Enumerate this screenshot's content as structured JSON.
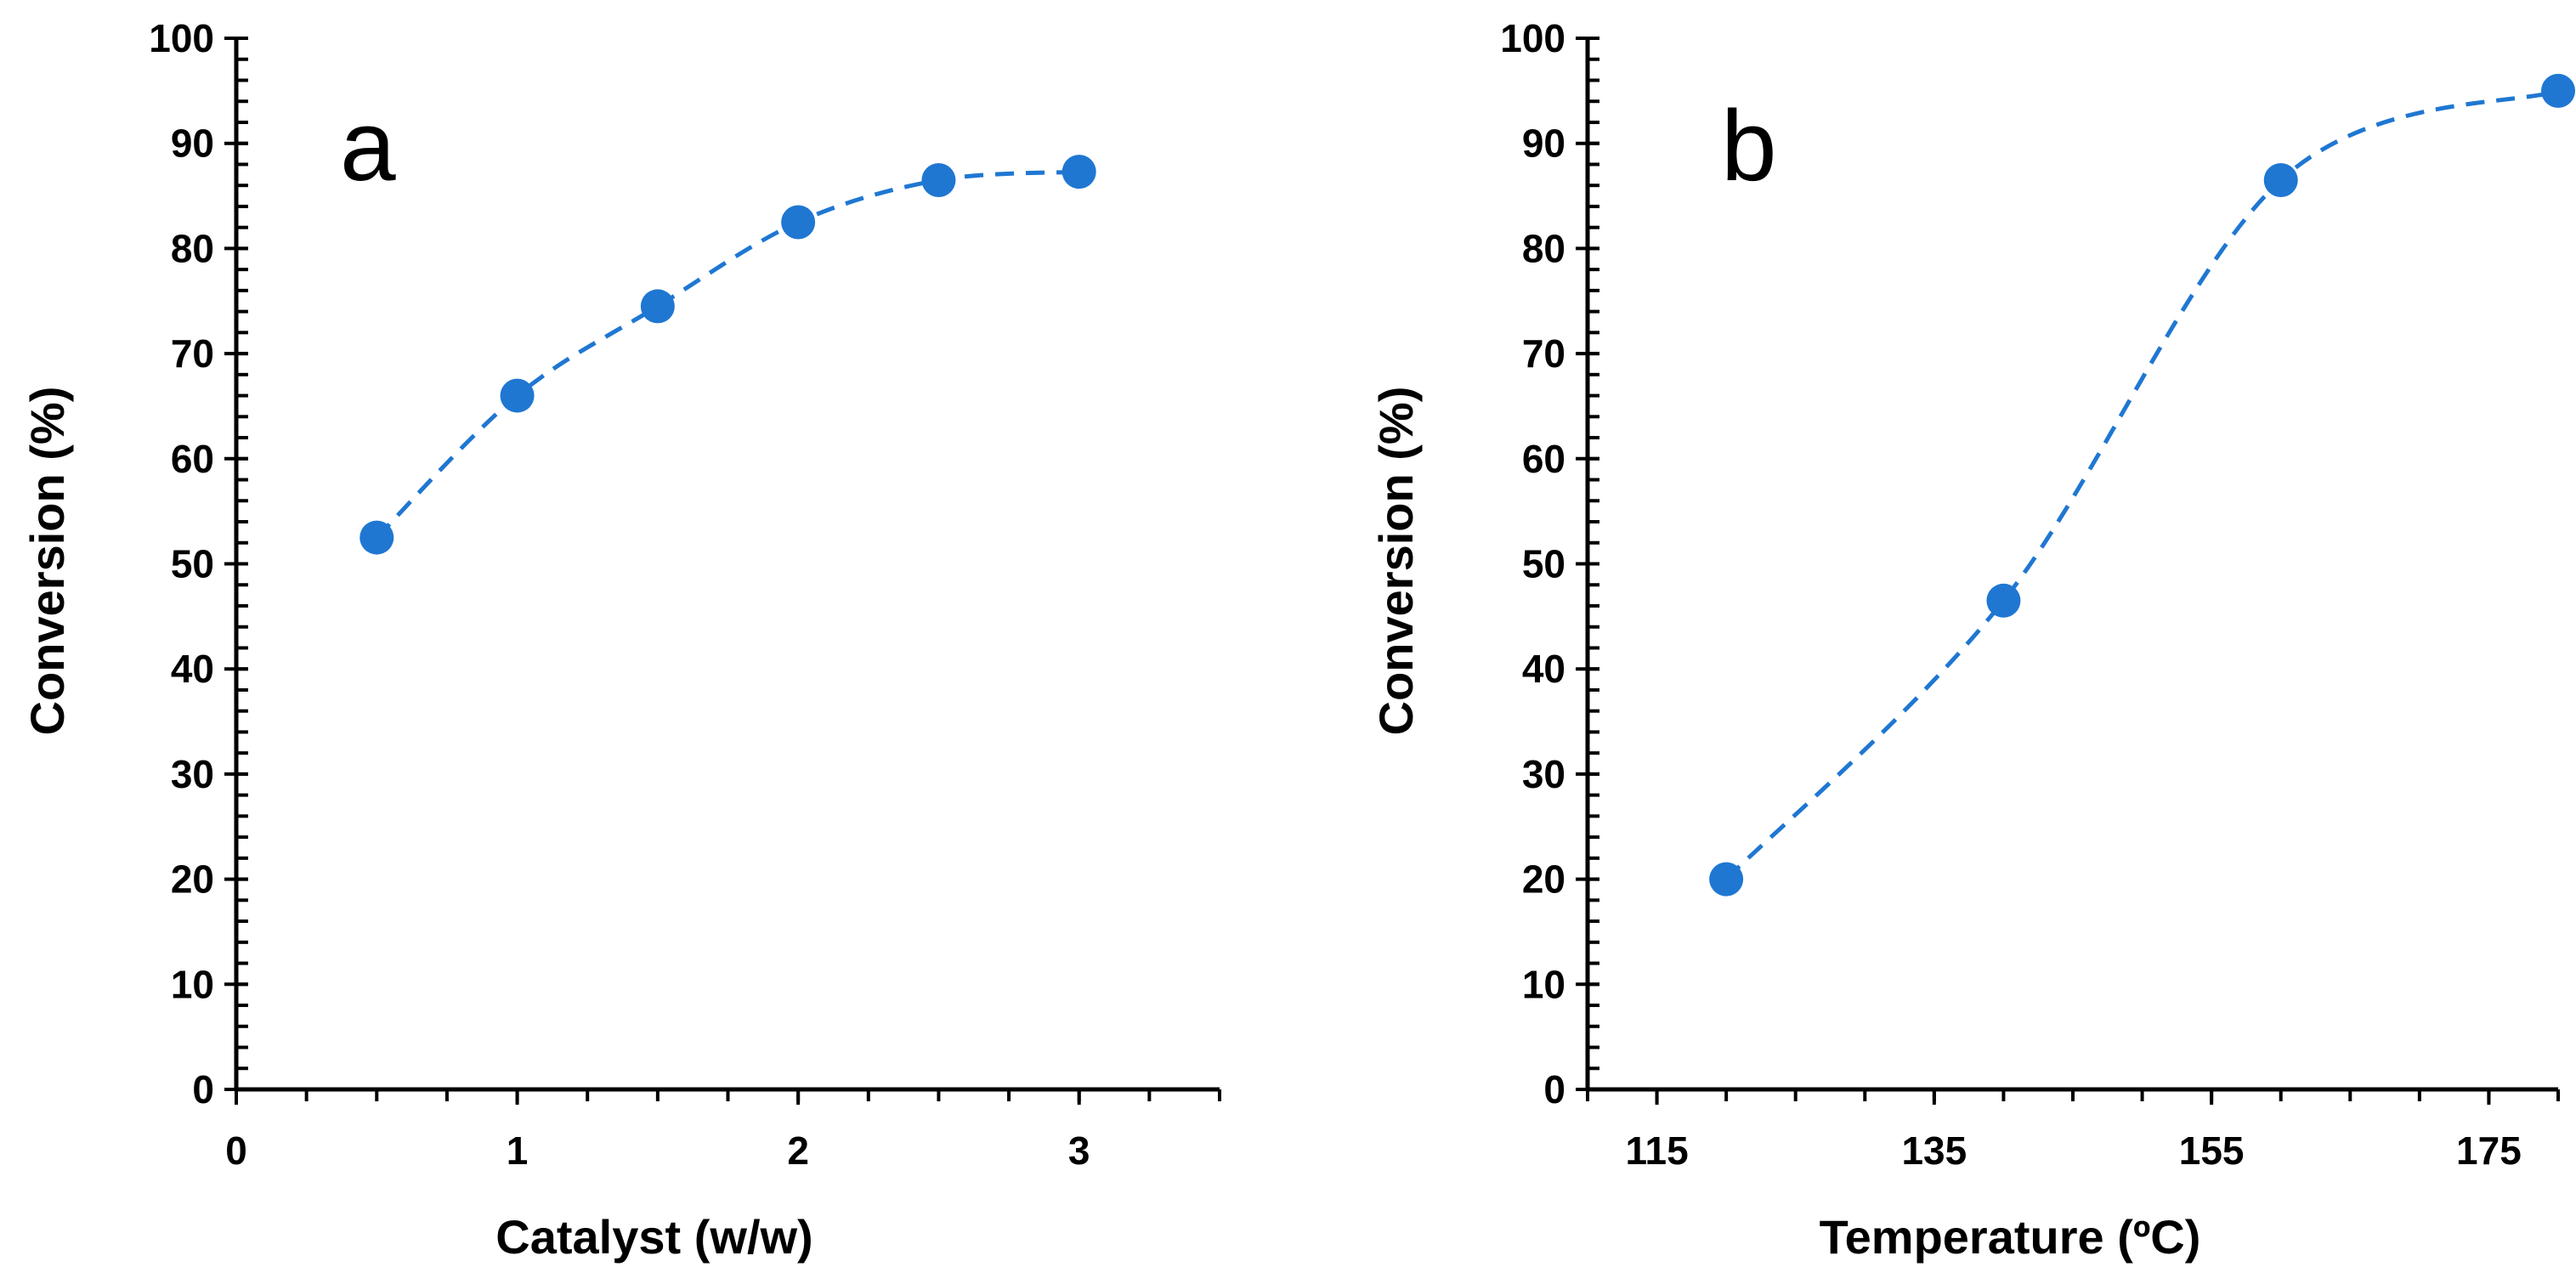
{
  "chart_data": [
    {
      "type": "scatter",
      "panel_label": "a",
      "title": "",
      "xlabel": "Catalyst (w/w)",
      "ylabel": "Conversion (%)",
      "xlim": [
        0,
        3.5
      ],
      "ylim": [
        0,
        100
      ],
      "x_ticks": [
        0,
        1,
        2,
        3
      ],
      "y_ticks": [
        0,
        10,
        20,
        30,
        40,
        50,
        60,
        70,
        80,
        90,
        100
      ],
      "marker_color": "#1f77d2",
      "line_style": "dashed-smooth",
      "series": [
        {
          "name": "Conversion",
          "x": [
            0.5,
            1.0,
            1.5,
            2.0,
            2.5,
            3.0
          ],
          "y": [
            52.5,
            66,
            74.5,
            82.5,
            86.5,
            87.3
          ]
        }
      ]
    },
    {
      "type": "scatter",
      "panel_label": "b",
      "title": "",
      "xlabel": "Temperature (ºC)",
      "ylabel": "Conversion (%)",
      "xlim": [
        110,
        180
      ],
      "ylim": [
        0,
        100
      ],
      "x_ticks": [
        115,
        135,
        155,
        175
      ],
      "y_ticks": [
        0,
        10,
        20,
        30,
        40,
        50,
        60,
        70,
        80,
        90,
        100
      ],
      "marker_color": "#1f77d2",
      "line_style": "dashed-smooth",
      "series": [
        {
          "name": "Conversion",
          "x": [
            120,
            140,
            160,
            180
          ],
          "y": [
            20,
            46.5,
            86.5,
            95
          ]
        }
      ]
    }
  ]
}
